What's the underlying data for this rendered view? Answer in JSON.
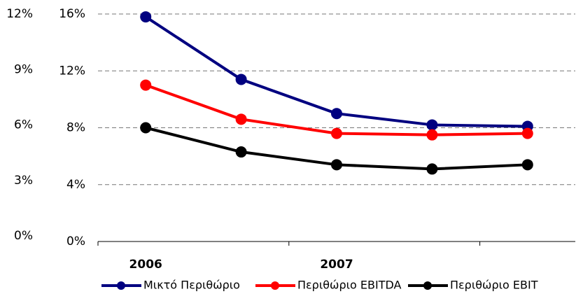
{
  "chart_data": {
    "type": "line",
    "categories": [
      "2006",
      null,
      "2007",
      null,
      null
    ],
    "series": [
      {
        "name": "Μικτό Περιθώριο",
        "color": "#000080",
        "values": [
          15.8,
          11.4,
          9.0,
          8.2,
          8.1
        ]
      },
      {
        "name": "Περιθώριο EBITDA",
        "color": "#ff0000",
        "values": [
          11.0,
          8.6,
          7.6,
          7.5,
          7.6
        ]
      },
      {
        "name": "Περιθώριο EBIT",
        "color": "#000000",
        "values": [
          8.0,
          6.3,
          5.4,
          5.1,
          5.4
        ]
      }
    ],
    "ylim": [
      0,
      16
    ],
    "yticks": [
      {
        "value": 0,
        "label": "0%"
      },
      {
        "value": 4,
        "label": "4%"
      },
      {
        "value": 8,
        "label": "8%"
      },
      {
        "value": 12,
        "label": "12%"
      },
      {
        "value": 16,
        "label": "16%"
      }
    ],
    "y2lim": [
      0,
      12
    ],
    "y2ticks": [
      {
        "value": 0,
        "label": "0%"
      },
      {
        "value": 3,
        "label": "3%"
      },
      {
        "value": 6,
        "label": "6%"
      },
      {
        "value": 9,
        "label": "9%"
      },
      {
        "value": 12,
        "label": "12%"
      }
    ],
    "grid": true,
    "legend": "bottom"
  }
}
